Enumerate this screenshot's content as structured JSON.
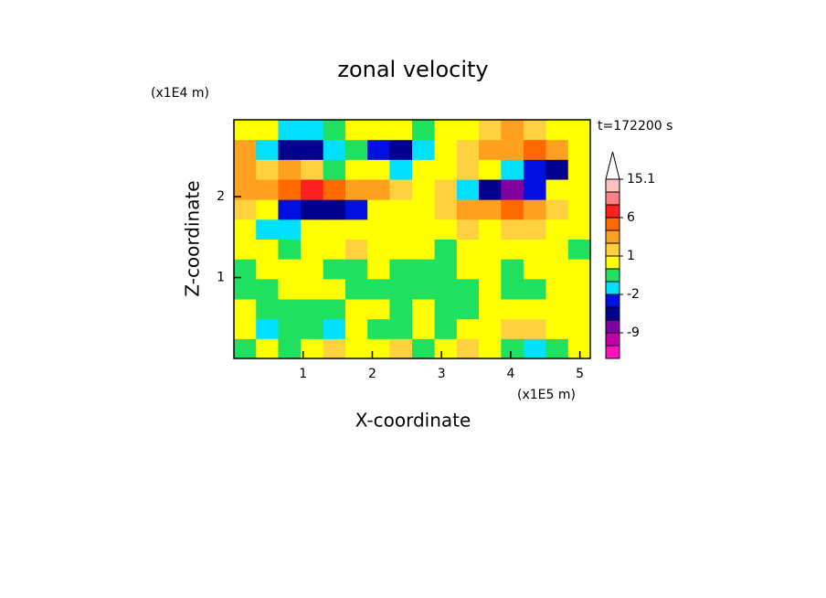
{
  "chart_data": {
    "type": "contour",
    "title": "zonal velocity",
    "x_label": "X-coordinate",
    "y_label": "Z-coordinate",
    "x_unit": "(x1E5 m)",
    "y_unit": "(x1E4 m)",
    "time_label": "t=172200 s",
    "xlim": [
      0,
      5.15
    ],
    "ylim": [
      0,
      2.95
    ],
    "xticks": [
      1,
      2,
      3,
      4,
      5
    ],
    "yticks": [
      1,
      2
    ],
    "x": [
      0.16,
      0.48,
      0.8,
      1.13,
      1.45,
      1.77,
      2.09,
      2.41,
      2.74,
      3.06,
      3.38,
      3.7,
      4.02,
      4.35,
      4.67,
      4.99
    ],
    "y": [
      0.12,
      0.37,
      0.61,
      0.86,
      1.11,
      1.35,
      1.6,
      1.84,
      2.09,
      2.34,
      2.58,
      2.83
    ],
    "z": [
      [
        -0.5,
        0.5,
        -0.5,
        0.5,
        1.5,
        0.5,
        0.5,
        1.5,
        -0.5,
        0.5,
        1.5,
        1,
        -0.5,
        -1.5,
        -0.5,
        0.5
      ],
      [
        0.5,
        -1.5,
        -0.5,
        -0.5,
        -1.5,
        0.5,
        -0.5,
        -0.5,
        0.5,
        -0.5,
        0.5,
        0.5,
        1.5,
        1.5,
        0.5,
        0.5
      ],
      [
        0.5,
        -0.5,
        -0.5,
        -0.5,
        -0.5,
        0.5,
        0.5,
        -0.5,
        0.5,
        -0.5,
        -0.5,
        0.5,
        0.5,
        0.5,
        0.5,
        0.5
      ],
      [
        -0.5,
        -0.5,
        0.5,
        0.5,
        0.5,
        -0.5,
        -0.5,
        -0.5,
        -0.5,
        -0.5,
        -0.5,
        0.5,
        -0.5,
        -0.5,
        0.5,
        0.5
      ],
      [
        -0.5,
        0.5,
        0.5,
        0.5,
        -0.5,
        -0.5,
        0.5,
        -0.5,
        -0.5,
        -0.5,
        0.5,
        0.5,
        -0.5,
        0.5,
        0.5,
        0.5
      ],
      [
        0.5,
        0.5,
        -0.5,
        0.5,
        0.5,
        1.5,
        0.5,
        0.5,
        0.5,
        -0.5,
        0.5,
        0.5,
        0.5,
        0.5,
        0.5,
        -0.5
      ],
      [
        1,
        -1,
        -1.5,
        0.5,
        0.5,
        0.5,
        1,
        0.5,
        0.5,
        0.5,
        1.5,
        1,
        2,
        1.5,
        0.5,
        0.5
      ],
      [
        2,
        1,
        -2,
        -5,
        -4,
        -2,
        1,
        0.5,
        0.5,
        1.5,
        3,
        4,
        5,
        3,
        2,
        1
      ],
      [
        3,
        4,
        5,
        7,
        6,
        4,
        3,
        2,
        0.5,
        2,
        -1.5,
        -5,
        -7,
        -3,
        0.5,
        1
      ],
      [
        4,
        2,
        4,
        1.5,
        -0.5,
        0.5,
        0.5,
        -1.5,
        0.5,
        1,
        1.5,
        1,
        -1.5,
        -2,
        -5,
        1
      ],
      [
        3,
        -1.5,
        -5,
        -5,
        -1.5,
        -0.5,
        -2,
        -5,
        -1.5,
        0.5,
        1.5,
        3,
        3,
        5,
        4,
        1
      ],
      [
        1,
        0.5,
        -1,
        -1.5,
        -0.5,
        0.5,
        0.5,
        0.5,
        -0.5,
        0.5,
        0.5,
        1.5,
        2.5,
        2,
        1,
        0.5
      ]
    ],
    "levels": [
      -15,
      -12,
      -9,
      -6,
      -4,
      -2,
      -1,
      0,
      1,
      2,
      4,
      6,
      9,
      12,
      15.1
    ],
    "level_colors": [
      "#ff10c0",
      "#c000a8",
      "#8000a0",
      "#000090",
      "#0010e0",
      "#00e0ff",
      "#20e060",
      "#ffff00",
      "#ffd040",
      "#ffa020",
      "#ff6a00",
      "#ff2020",
      "#ff8080",
      "#ffc0c0"
    ],
    "over_color": "#ffffff",
    "colorbar_ticks": [
      15.1,
      6,
      1,
      -2,
      -9
    ]
  }
}
